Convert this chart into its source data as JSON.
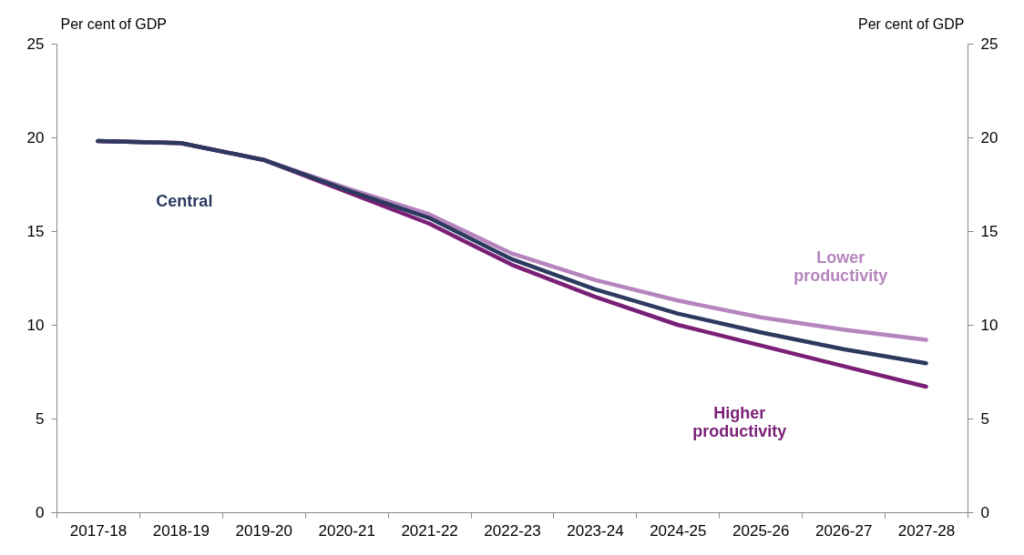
{
  "chart_data": {
    "type": "line",
    "ylabel": "Per cent of GDP",
    "y2label": "Per cent of GDP",
    "categories": [
      "2017-18",
      "2018-19",
      "2019-20",
      "2020-21",
      "2021-22",
      "2022-23",
      "2023-24",
      "2024-25",
      "2025-26",
      "2026-27",
      "2027-28"
    ],
    "ylim": [
      0,
      25
    ],
    "yticks": [
      0,
      5,
      10,
      15,
      20,
      25
    ],
    "y2lim": [
      0,
      25
    ],
    "y2ticks": [
      0,
      5,
      10,
      15,
      20,
      25
    ],
    "series": [
      {
        "name": "Lower productivity",
        "color": "#b585bd",
        "values": [
          19.8,
          19.7,
          18.8,
          17.3,
          15.9,
          13.8,
          12.4,
          11.3,
          10.4,
          9.75,
          9.2
        ]
      },
      {
        "name": "Higher productivity",
        "color": "#7a1f76",
        "values": [
          19.8,
          19.7,
          18.8,
          17.1,
          15.4,
          13.2,
          11.5,
          10.0,
          8.9,
          7.8,
          6.7
        ]
      },
      {
        "name": "Central",
        "color": "#2d3a5f",
        "values": [
          19.8,
          19.7,
          18.8,
          17.2,
          15.7,
          13.5,
          11.9,
          10.6,
          9.6,
          8.7,
          7.95
        ]
      }
    ]
  }
}
